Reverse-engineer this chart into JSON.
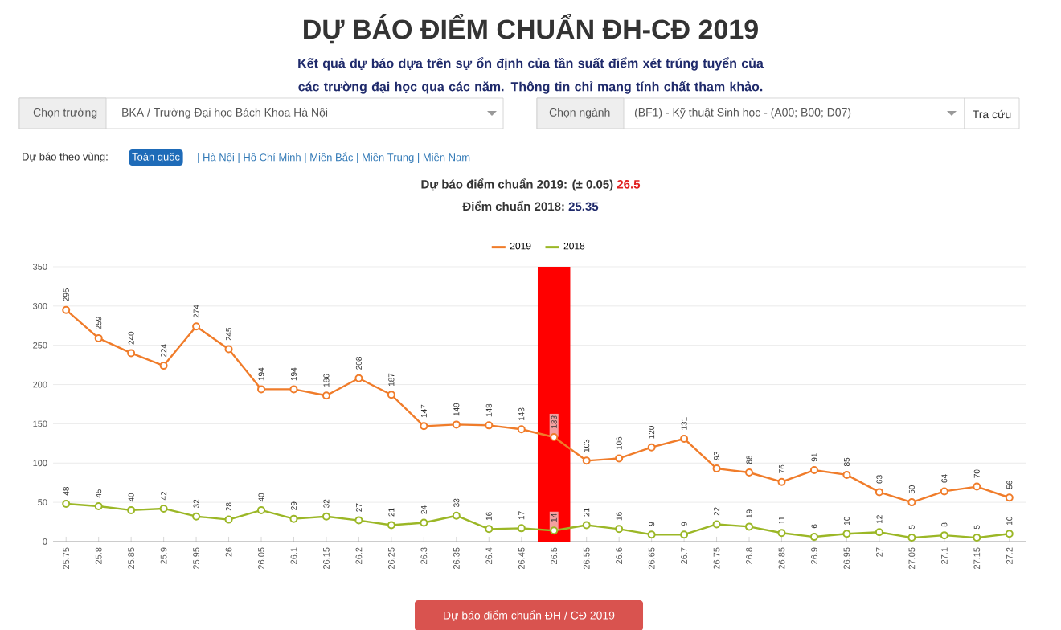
{
  "chart_data": {
    "type": "line",
    "title": "DỰ BÁO ĐIỂM CHUẨN ĐH-CĐ 2019",
    "subtitle": "Kết quả dự báo dựa trên sự ổn định của tần suất điểm xét trúng tuyển của các trường đại học qua các năm. Thông tin chỉ mang tính chất tham khảo.",
    "annotations": [
      "Chọn trường",
      "BKA / Trường Đại học Bách Khoa Hà Nội",
      "Chọn ngành",
      "(BF1) - Kỹ thuật Sinh học - (A00; B00; D07)",
      "Tra cứu",
      "Dự báo theo vùng:",
      "Toàn quốc",
      "| Hà Nội | Hồ Chí Minh | Miền Bắc | Miền Trung | Miền Nam",
      "Dự báo điểm chuẩn 2019: (± 0.05)",
      "26.5",
      "Điểm chuẩn 2018:",
      "25.35",
      "Dự báo điểm chuẩn ĐH / CĐ 2019"
    ],
    "x": [
      25.75,
      25.8,
      25.85,
      25.9,
      25.95,
      26,
      26.05,
      26.1,
      26.15,
      26.2,
      26.25,
      26.3,
      26.35,
      26.4,
      26.45,
      26.5,
      26.55,
      26.6,
      26.65,
      26.7,
      26.75,
      26.8,
      26.85,
      26.9,
      26.95,
      27,
      27.05,
      27.1,
      27.15,
      27.2
    ],
    "series": [
      {
        "name": "2019",
        "color": "#f07c2a",
        "values": [
          295,
          259,
          240,
          224,
          274,
          245,
          194,
          194,
          186,
          208,
          187,
          147,
          149,
          148,
          143,
          133,
          103,
          106,
          120,
          131,
          93,
          88,
          76,
          91,
          85,
          63,
          50,
          64,
          70,
          56
        ]
      },
      {
        "name": "2018",
        "color": "#9bb726",
        "values": [
          48,
          45,
          40,
          42,
          32,
          28,
          40,
          29,
          32,
          27,
          21,
          24,
          33,
          16,
          17,
          14,
          21,
          16,
          9,
          9,
          22,
          19,
          11,
          6,
          10,
          12,
          5,
          8,
          5,
          10
        ]
      }
    ],
    "xlim": [
      25.73,
      27.225
    ],
    "xticks": [
      25.75,
      25.8,
      25.85,
      25.9,
      25.95,
      26,
      26.05,
      26.1,
      26.15,
      26.2,
      26.25,
      26.3,
      26.35,
      26.4,
      26.45,
      26.5,
      26.55,
      26.6,
      26.65,
      26.7,
      26.75,
      26.8,
      26.85,
      26.9,
      26.95,
      27,
      27.05,
      27.1,
      27.15,
      27.2
    ],
    "ylim": [
      0,
      350
    ],
    "yticks": [
      0,
      50,
      100,
      150,
      200,
      250,
      300,
      350
    ],
    "bands": [
      {
        "axis": "x",
        "from": 26.475,
        "to": 26.525,
        "color": "#ff0000"
      }
    ],
    "grid": "y",
    "legend": "top",
    "marker": "circle",
    "line_style": "solid",
    "data_labels": true
  }
}
